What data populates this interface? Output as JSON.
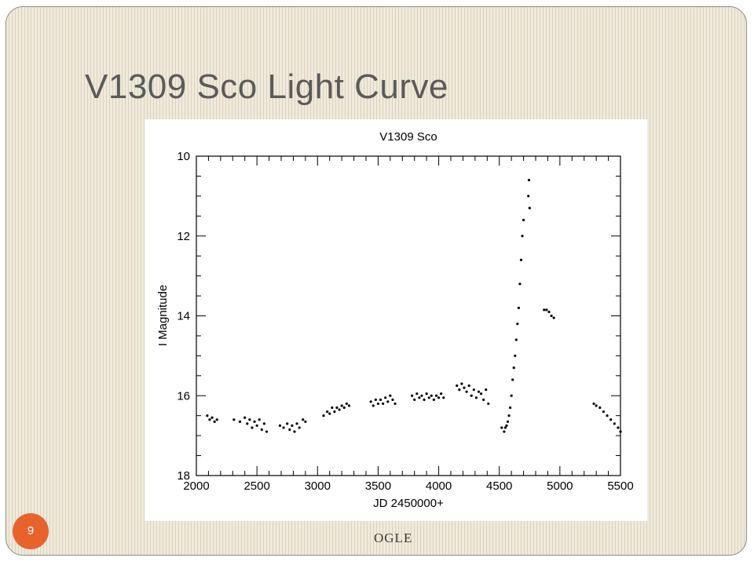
{
  "slide": {
    "title": "V1309 Sco Light Curve",
    "number": "9",
    "footer": "OGLE"
  },
  "colors": {
    "title_text": "#5a5a5a",
    "badge": "#e8622c",
    "background": "#efeadb",
    "stripe": "#d9d2bd",
    "points": "#000000"
  },
  "chart_data": {
    "type": "scatter",
    "title": "V1309 Sco",
    "xlabel": "JD 2450000+",
    "ylabel": "I Magnitude",
    "xlim": [
      2000,
      5500
    ],
    "ylim": [
      18,
      10
    ],
    "y_inverted": true,
    "grid": false,
    "x_ticks": [
      "2000",
      "2500",
      "3000",
      "3500",
      "4000",
      "4500",
      "5000",
      "5500"
    ],
    "y_ticks": [
      "10",
      "12",
      "14",
      "16",
      "18"
    ],
    "series": [
      {
        "values": [
          [
            2090,
            16.5
          ],
          [
            2110,
            16.6
          ],
          [
            2130,
            16.55
          ],
          [
            2150,
            16.65
          ],
          [
            2170,
            16.6
          ],
          [
            2310,
            16.6
          ],
          [
            2360,
            16.65
          ],
          [
            2400,
            16.55
          ],
          [
            2420,
            16.7
          ],
          [
            2440,
            16.6
          ],
          [
            2460,
            16.8
          ],
          [
            2480,
            16.65
          ],
          [
            2500,
            16.75
          ],
          [
            2520,
            16.6
          ],
          [
            2540,
            16.85
          ],
          [
            2560,
            16.7
          ],
          [
            2580,
            16.9
          ],
          [
            2690,
            16.75
          ],
          [
            2720,
            16.8
          ],
          [
            2750,
            16.7
          ],
          [
            2770,
            16.85
          ],
          [
            2790,
            16.75
          ],
          [
            2810,
            16.9
          ],
          [
            2830,
            16.7
          ],
          [
            2850,
            16.8
          ],
          [
            2880,
            16.6
          ],
          [
            2900,
            16.65
          ],
          [
            3050,
            16.5
          ],
          [
            3080,
            16.4
          ],
          [
            3100,
            16.45
          ],
          [
            3120,
            16.3
          ],
          [
            3140,
            16.4
          ],
          [
            3160,
            16.3
          ],
          [
            3180,
            16.35
          ],
          [
            3200,
            16.25
          ],
          [
            3220,
            16.3
          ],
          [
            3240,
            16.2
          ],
          [
            3260,
            16.25
          ],
          [
            3440,
            16.15
          ],
          [
            3460,
            16.25
          ],
          [
            3480,
            16.1
          ],
          [
            3500,
            16.2
          ],
          [
            3520,
            16.1
          ],
          [
            3540,
            16.2
          ],
          [
            3560,
            16.05
          ],
          [
            3580,
            16.15
          ],
          [
            3600,
            16.0
          ],
          [
            3620,
            16.1
          ],
          [
            3640,
            16.2
          ],
          [
            3780,
            16.0
          ],
          [
            3800,
            16.1
          ],
          [
            3820,
            15.95
          ],
          [
            3840,
            16.05
          ],
          [
            3860,
            16.0
          ],
          [
            3880,
            16.1
          ],
          [
            3900,
            15.95
          ],
          [
            3920,
            16.05
          ],
          [
            3940,
            16.0
          ],
          [
            3960,
            16.1
          ],
          [
            3980,
            16.0
          ],
          [
            4000,
            16.05
          ],
          [
            4020,
            15.95
          ],
          [
            4040,
            16.05
          ],
          [
            4150,
            15.75
          ],
          [
            4170,
            15.85
          ],
          [
            4190,
            15.7
          ],
          [
            4210,
            15.8
          ],
          [
            4230,
            15.9
          ],
          [
            4250,
            15.75
          ],
          [
            4270,
            16.0
          ],
          [
            4290,
            15.85
          ],
          [
            4310,
            16.05
          ],
          [
            4330,
            15.9
          ],
          [
            4350,
            15.95
          ],
          [
            4370,
            16.1
          ],
          [
            4390,
            15.85
          ],
          [
            4410,
            16.2
          ],
          [
            4520,
            16.8
          ],
          [
            4540,
            16.9
          ],
          [
            4550,
            16.8
          ],
          [
            4560,
            16.75
          ],
          [
            4570,
            16.65
          ],
          [
            4580,
            16.5
          ],
          [
            4590,
            16.3
          ],
          [
            4600,
            16.0
          ],
          [
            4610,
            15.6
          ],
          [
            4620,
            15.3
          ],
          [
            4630,
            15.0
          ],
          [
            4640,
            14.6
          ],
          [
            4650,
            14.2
          ],
          [
            4660,
            13.8
          ],
          [
            4670,
            13.2
          ],
          [
            4680,
            12.6
          ],
          [
            4690,
            12.0
          ],
          [
            4700,
            11.6
          ],
          [
            4740,
            11.0
          ],
          [
            4745,
            10.6
          ],
          [
            4750,
            11.3
          ],
          [
            4870,
            13.85
          ],
          [
            4890,
            13.85
          ],
          [
            4910,
            13.9
          ],
          [
            4930,
            14.0
          ],
          [
            4950,
            14.05
          ],
          [
            5280,
            16.2
          ],
          [
            5300,
            16.25
          ],
          [
            5330,
            16.3
          ],
          [
            5360,
            16.4
          ],
          [
            5390,
            16.5
          ],
          [
            5420,
            16.6
          ],
          [
            5450,
            16.7
          ],
          [
            5480,
            16.8
          ],
          [
            5500,
            16.9
          ]
        ]
      }
    ]
  }
}
